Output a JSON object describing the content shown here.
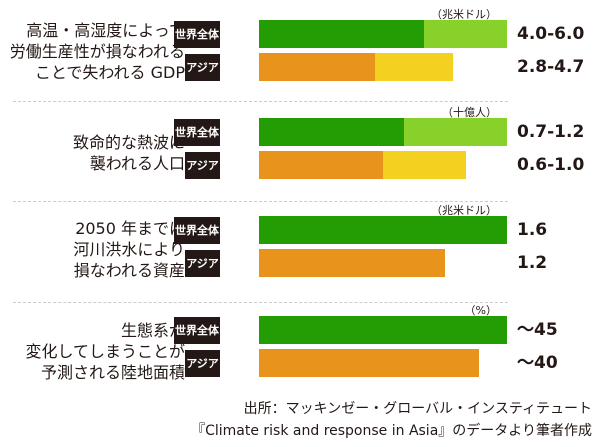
{
  "chart_data": {
    "type": "bar",
    "colors": {
      "world_low": "#249c04",
      "world_high": "#88d02a",
      "asia_low": "#e8941c",
      "asia_high": "#f4d020",
      "tag_bg": "#231815"
    },
    "groups": [
      {
        "category": "高温・高湿度によって\n労働生産性が損なわれる\nことで失われる GDP",
        "unit": "（兆米ドル）",
        "scale_max": 6.0,
        "series": [
          {
            "name": "世界全体",
            "low": 4.0,
            "high": 6.0,
            "label": "4.0-6.0"
          },
          {
            "name": "アジア",
            "low": 2.8,
            "high": 4.7,
            "label": "2.8-4.7"
          }
        ]
      },
      {
        "category": "致命的な熱波に\n襲われる人口",
        "unit": "（十億人）",
        "scale_max": 1.2,
        "series": [
          {
            "name": "世界全体",
            "low": 0.7,
            "high": 1.2,
            "label": "0.7-1.2"
          },
          {
            "name": "アジア",
            "low": 0.6,
            "high": 1.0,
            "label": "0.6-1.0"
          }
        ]
      },
      {
        "category": "2050 年までに\n河川洪水により\n損なわれる資産",
        "unit": "（兆米ドル）",
        "scale_max": 1.6,
        "series": [
          {
            "name": "世界全体",
            "low": 1.6,
            "high": 1.6,
            "label": "1.6"
          },
          {
            "name": "アジア",
            "low": 1.2,
            "high": 1.2,
            "label": "1.2"
          }
        ]
      },
      {
        "category": "生態系が\n変化してしまうことが\n予測される陸地面積",
        "unit": "（%）",
        "scale_max": 45,
        "series": [
          {
            "name": "世界全体",
            "low": 45,
            "high": 45,
            "label": "～45"
          },
          {
            "name": "アジア",
            "low": 40,
            "high": 40,
            "label": "～40"
          }
        ]
      }
    ]
  },
  "source": {
    "line1": "出所：マッキンゼー・グローバル・インスティテュート",
    "line2": "『Climate risk and response in Asia』のデータより筆者作成"
  }
}
